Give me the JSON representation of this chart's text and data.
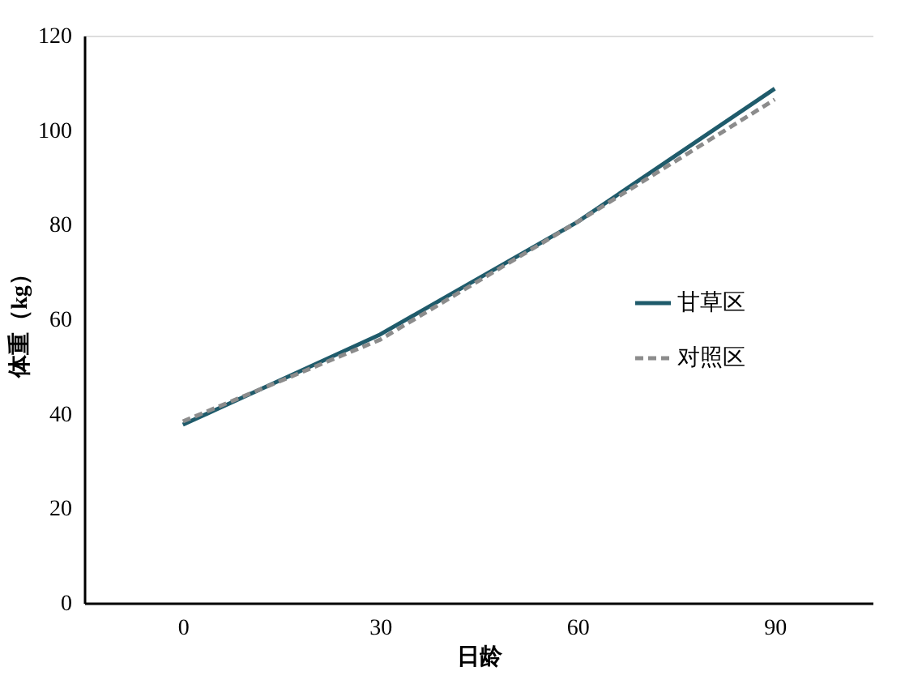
{
  "chart_data": {
    "type": "line",
    "xlabel": "日龄",
    "ylabel": "体重（kg）",
    "categories": [
      "0",
      "30",
      "60",
      "90"
    ],
    "series": [
      {
        "name": "甘草区",
        "color": "#1f5b6b",
        "line_style": "solid",
        "values": [
          37.7,
          56.8,
          80.6,
          108.8
        ]
      },
      {
        "name": "对照区",
        "color": "#8c8c8c",
        "line_style": "dashed",
        "values": [
          38.4,
          55.7,
          80.6,
          106.5
        ]
      }
    ],
    "ylim": [
      0,
      120
    ],
    "yticks": [
      0,
      20,
      40,
      60,
      80,
      100,
      120
    ],
    "grid": false,
    "legend": "right",
    "marker": "none"
  }
}
